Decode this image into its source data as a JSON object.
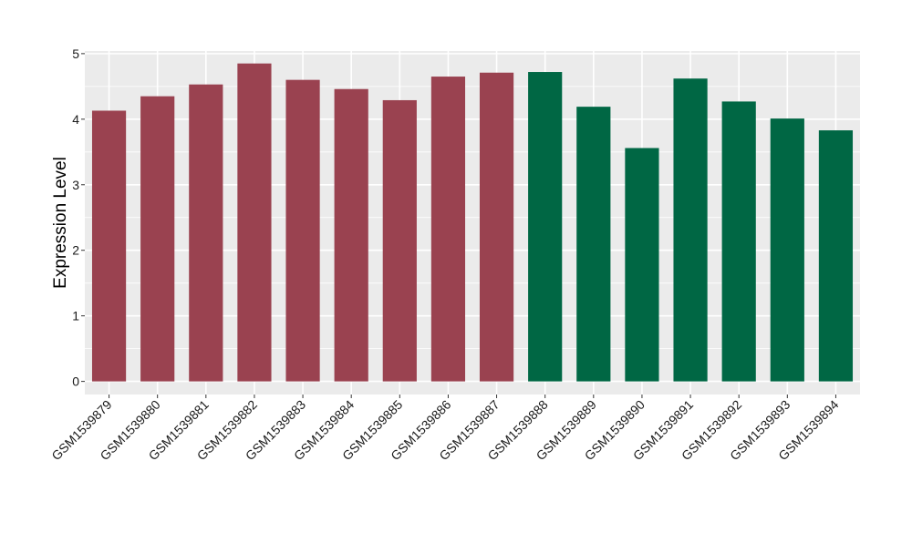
{
  "chart_data": {
    "type": "bar",
    "title": "",
    "xlabel": "",
    "ylabel": "Expression Level",
    "ylim": [
      -0.2,
      5.04
    ],
    "yticks": [
      0,
      1,
      2,
      3,
      4,
      5
    ],
    "grid": true,
    "legend": "none",
    "categories": [
      "GSM1539879",
      "GSM1539880",
      "GSM1539881",
      "GSM1539882",
      "GSM1539883",
      "GSM1539884",
      "GSM1539885",
      "GSM1539886",
      "GSM1539887",
      "GSM1539888",
      "GSM1539889",
      "GSM1539890",
      "GSM1539891",
      "GSM1539892",
      "GSM1539893",
      "GSM1539894"
    ],
    "values": [
      4.13,
      4.35,
      4.53,
      4.85,
      4.6,
      4.46,
      4.29,
      4.65,
      4.71,
      4.72,
      4.19,
      3.56,
      4.62,
      4.27,
      4.01,
      3.83
    ],
    "groups": [
      1,
      1,
      1,
      1,
      1,
      1,
      1,
      1,
      1,
      2,
      2,
      2,
      2,
      2,
      2,
      2
    ],
    "group_colors": {
      "1": "#9a4250",
      "2": "#006744"
    },
    "panel_background": "#ebebeb",
    "grid_color": "#ffffff"
  }
}
